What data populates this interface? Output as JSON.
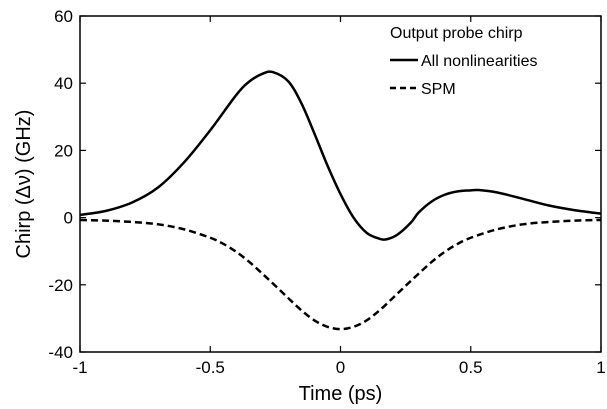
{
  "chart_data": {
    "type": "line",
    "title": "",
    "xlabel": "Time (ps)",
    "ylabel": "Chirp (Δν) (GHz)",
    "xlim": [
      -1,
      1
    ],
    "ylim": [
      -40,
      60
    ],
    "xticks": [
      -1,
      -0.5,
      0,
      0.5,
      1
    ],
    "xtick_labels": [
      "-1",
      "-0.5",
      "0",
      "0.5",
      "1"
    ],
    "yticks": [
      -40,
      -20,
      0,
      20,
      40,
      60
    ],
    "ytick_labels": [
      "-40",
      "-20",
      "0",
      "20",
      "40",
      "60"
    ],
    "grid": false,
    "legend": {
      "title": "Output probe chirp",
      "placement": "top-right"
    },
    "series": [
      {
        "name": "All nonlinearities",
        "style": "solid",
        "color": "#000000",
        "x": [
          -1.0,
          -0.9,
          -0.8,
          -0.7,
          -0.6,
          -0.5,
          -0.4,
          -0.35,
          -0.3,
          -0.26,
          -0.2,
          -0.15,
          -0.1,
          -0.05,
          0.0,
          0.05,
          0.1,
          0.15,
          0.18,
          0.22,
          0.27,
          0.3,
          0.35,
          0.4,
          0.45,
          0.5,
          0.53,
          0.6,
          0.7,
          0.8,
          0.9,
          1.0
        ],
        "y": [
          0.8,
          2.0,
          4.5,
          9.0,
          16.5,
          26.0,
          36.5,
          40.5,
          42.8,
          43.3,
          40.5,
          34.0,
          25.0,
          15.5,
          7.0,
          0.0,
          -4.5,
          -6.3,
          -6.4,
          -5.0,
          -1.5,
          1.5,
          4.8,
          6.8,
          7.8,
          8.1,
          8.2,
          7.5,
          5.6,
          3.6,
          2.2,
          1.2
        ]
      },
      {
        "name": "SPM",
        "style": "dashed",
        "color": "#000000",
        "x": [
          -1.0,
          -0.9,
          -0.8,
          -0.7,
          -0.6,
          -0.5,
          -0.45,
          -0.4,
          -0.35,
          -0.3,
          -0.25,
          -0.2,
          -0.15,
          -0.1,
          -0.05,
          0.0,
          0.05,
          0.1,
          0.15,
          0.2,
          0.25,
          0.3,
          0.35,
          0.4,
          0.45,
          0.5,
          0.6,
          0.7,
          0.8,
          0.9,
          1.0
        ],
        "y": [
          -0.7,
          -0.9,
          -1.3,
          -2.0,
          -3.5,
          -6.0,
          -7.8,
          -10.2,
          -13.2,
          -16.7,
          -20.3,
          -24.0,
          -27.6,
          -30.6,
          -32.5,
          -33.2,
          -32.5,
          -30.6,
          -27.6,
          -24.0,
          -20.3,
          -16.7,
          -13.2,
          -10.2,
          -7.8,
          -6.0,
          -3.5,
          -2.0,
          -1.3,
          -0.9,
          -0.7
        ]
      }
    ]
  }
}
